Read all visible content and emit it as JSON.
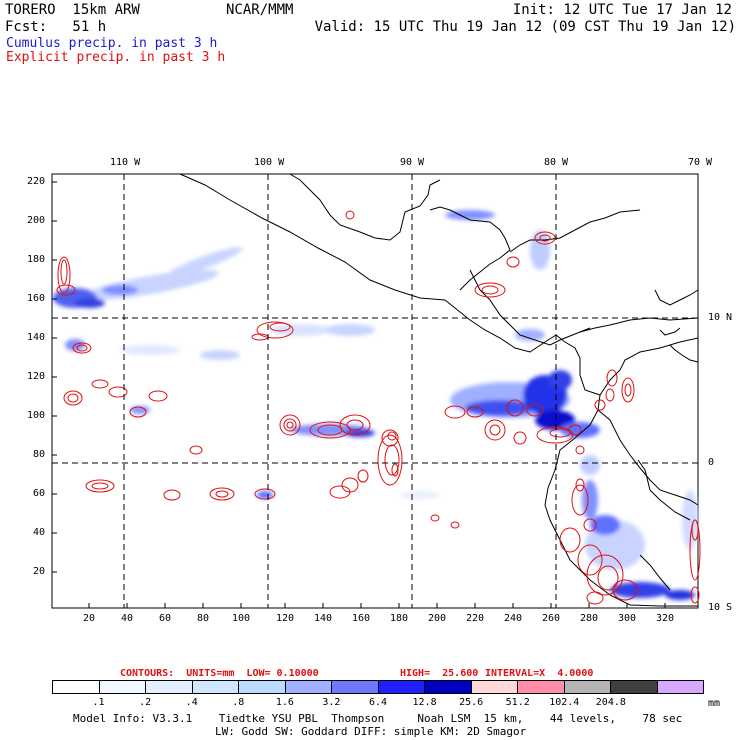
{
  "header": {
    "model_name": "TORERO  15km ARW",
    "center": "NCAR/MMM",
    "init": "Init: 12 UTC Tue 17 Jan 12",
    "fcst": "Fcst:   51 h",
    "valid": "Valid: 15 UTC Thu 19 Jan 12 (09 CST Thu 19 Jan 12)",
    "legend_cumulus": "Cumulus precip. in past 3 h",
    "legend_explicit": "Explicit precip. in past 3 h"
  },
  "map": {
    "top_lon_labels": [
      "110 W",
      "100 W",
      "90 W",
      "80 W",
      "70 W"
    ],
    "right_lat_labels": [
      "10 N",
      "0",
      "10 S"
    ],
    "y_ticks": [
      "220",
      "200",
      "180",
      "160",
      "140",
      "120",
      "100",
      "80",
      "60",
      "40",
      "20"
    ],
    "x_ticks": [
      "20",
      "40",
      "60",
      "80",
      "100",
      "120",
      "140",
      "160",
      "180",
      "200",
      "220",
      "240",
      "260",
      "280",
      "300",
      "320"
    ],
    "colors": {
      "cumulus_light": "#d6e4ff",
      "cumulus_mid": "#7a8cff",
      "cumulus_dark": "#1010e0",
      "explicit": "#e01010",
      "coast": "#000000"
    }
  },
  "contour_info": {
    "label": "CONTOURS:  UNITS=mm  LOW= 0.10000",
    "high": "HIGH=  25.600",
    "interval": "INTERVAL=X  4.0000"
  },
  "colorbar": {
    "colors": [
      "#ffffff",
      "#f2f8ff",
      "#e4f0ff",
      "#cfe6ff",
      "#bcdcff",
      "#9fb1ff",
      "#6e78ff",
      "#2020ff",
      "#0000c0",
      "#ffd8d8",
      "#ff8ca8",
      "#b4b4b4",
      "#404040",
      "#d8a8ff"
    ],
    "labels": [
      ".1",
      ".2",
      ".4",
      ".8",
      "1.6",
      "3.2",
      "6.4",
      "12.8",
      "25.6",
      "51.2",
      "102.4",
      "204.8"
    ],
    "units": "mm"
  },
  "footer": {
    "line1": "Model Info: V3.3.1    Tiedtke YSU PBL  Thompson     Noah LSM  15 km,    44 levels,    78 sec",
    "line2": "LW: Godd SW: Goddard DIFF: simple KM: 2D Smagor"
  }
}
